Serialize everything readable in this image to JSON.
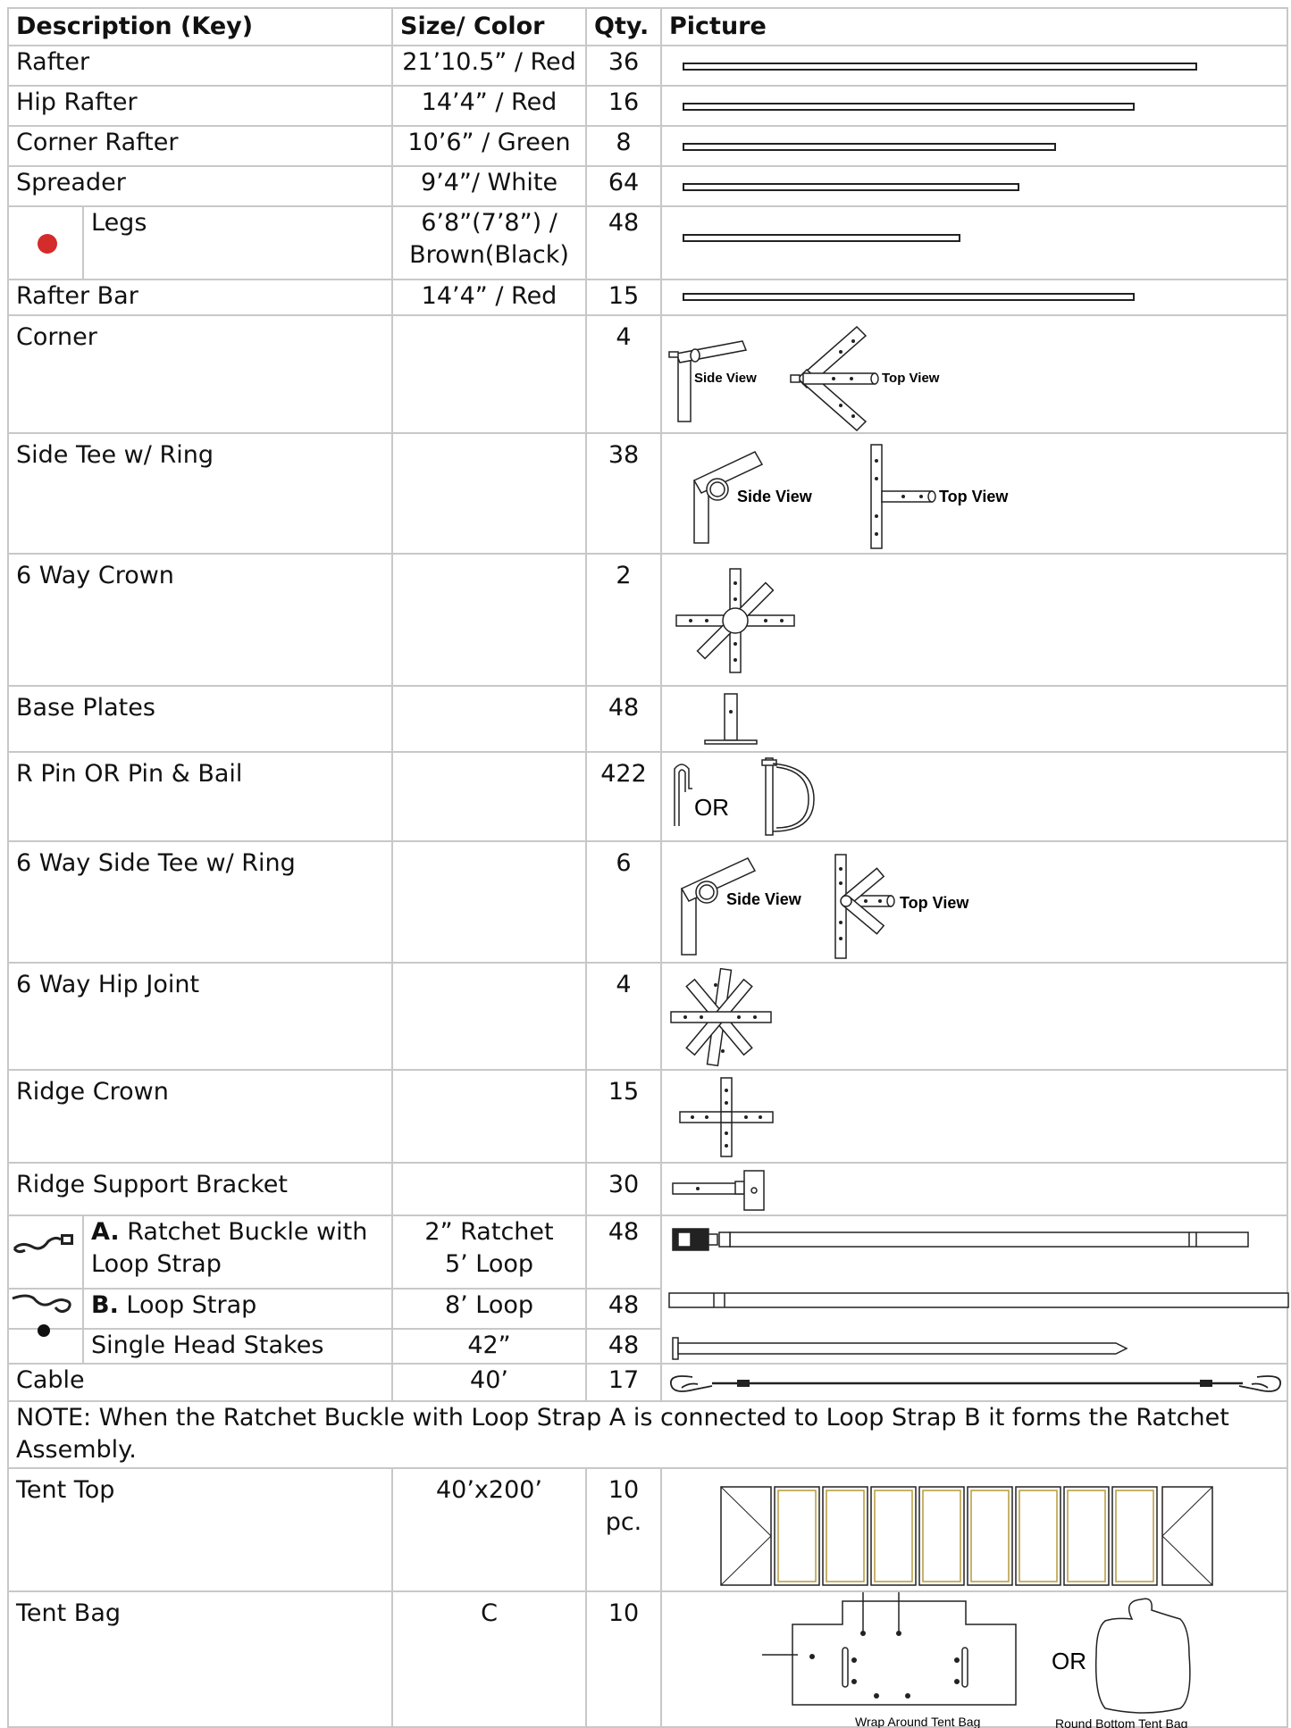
{
  "headers": {
    "description": "Description (Key)",
    "size": "Size/ Color",
    "qty": "Qty.",
    "picture": "Picture"
  },
  "rows": {
    "rafter": {
      "desc": "Rafter",
      "size": "21’10.5” / Red",
      "qty": "36"
    },
    "hip_rafter": {
      "desc": "Hip Rafter",
      "size": "14’4” / Red",
      "qty": "16"
    },
    "corner_rafter": {
      "desc": "Corner Rafter",
      "size": "10’6” / Green",
      "qty": "8"
    },
    "spreader": {
      "desc": "Spreader",
      "size": "9’4”/ White",
      "qty": "64"
    },
    "legs": {
      "desc": "Legs",
      "size_line1": "6’8”(7’8”) /",
      "size_line2": "Brown(Black)",
      "qty": "48"
    },
    "rafter_bar": {
      "desc": "Rafter Bar",
      "size": "14’4” / Red",
      "qty": "15"
    },
    "corner": {
      "desc": "Corner",
      "qty": "4",
      "side_view": "Side View",
      "top_view": "Top View"
    },
    "side_tee": {
      "desc": "Side Tee w/ Ring",
      "qty": "38",
      "side_view": "Side View",
      "top_view": "Top View"
    },
    "six_way_crown": {
      "desc": "6 Way Crown",
      "qty": "2"
    },
    "base_plates": {
      "desc": "Base Plates",
      "qty": "48"
    },
    "r_pin": {
      "desc": "R Pin OR Pin & Bail",
      "qty": "422",
      "or_label": "OR"
    },
    "six_way_side_tee": {
      "desc": "6 Way Side Tee w/ Ring",
      "qty": "6",
      "side_view": "Side View",
      "top_view": "Top View"
    },
    "six_way_hip_joint": {
      "desc": "6 Way Hip Joint",
      "qty": "4"
    },
    "ridge_crown": {
      "desc": "Ridge Crown",
      "qty": "15"
    },
    "ridge_support_bracket": {
      "desc": "Ridge Support Bracket",
      "qty": "30"
    },
    "ratchet_buckle": {
      "prefix": "A.",
      "desc_line1": " Ratchet Buckle with",
      "desc_line2": "Loop Strap",
      "size_line1": "2” Ratchet",
      "size_line2": "5’ Loop",
      "qty": "48"
    },
    "loop_strap": {
      "prefix": "B.",
      "desc": " Loop Strap",
      "size": "8’ Loop",
      "qty": "48"
    },
    "stakes": {
      "desc": "Single Head Stakes",
      "size": "42”",
      "qty": "48"
    },
    "cable": {
      "desc": "Cable",
      "size": "40’",
      "qty": "17"
    },
    "note": "NOTE: When the Ratchet Buckle with Loop Strap A is connected to Loop Strap B it forms the Ratchet Assembly.",
    "tent_top": {
      "desc": "Tent Top",
      "size": "40’x200’",
      "qty_line1": "10",
      "qty_line2": "pc."
    },
    "tent_bag": {
      "desc": "Tent Bag",
      "size": "C",
      "qty": "10",
      "or_label": "OR",
      "wrap_caption": "Wrap Around Tent Bag",
      "round_caption": "Round Bottom Tent Bag"
    }
  },
  "colors": {
    "legs_dot": "#d42b2b",
    "grid": "#c8c8c8"
  }
}
